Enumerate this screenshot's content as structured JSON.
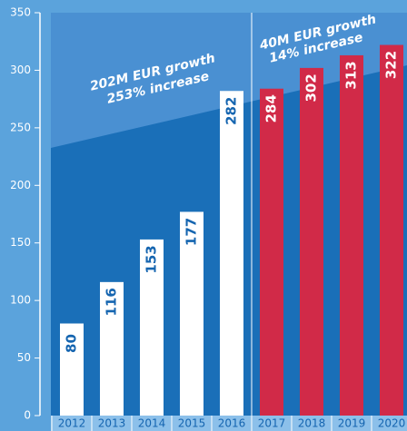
{
  "chart_data": {
    "type": "bar",
    "categories": [
      "2012",
      "2013",
      "2014",
      "2015",
      "2016",
      "2017",
      "2018",
      "2019",
      "2020"
    ],
    "values": [
      80,
      116,
      153,
      177,
      282,
      284,
      302,
      313,
      322
    ],
    "colors": [
      "#ffffff",
      "#ffffff",
      "#ffffff",
      "#ffffff",
      "#ffffff",
      "#d12a48",
      "#d12a48",
      "#d12a48",
      "#d12a48"
    ],
    "ylim": [
      0,
      350
    ],
    "yticks": [
      0,
      50,
      100,
      150,
      200,
      250,
      300,
      350
    ],
    "annotations": [
      "202M EUR growth",
      "253% increase",
      "40M EUR growth",
      "14% increase"
    ]
  }
}
